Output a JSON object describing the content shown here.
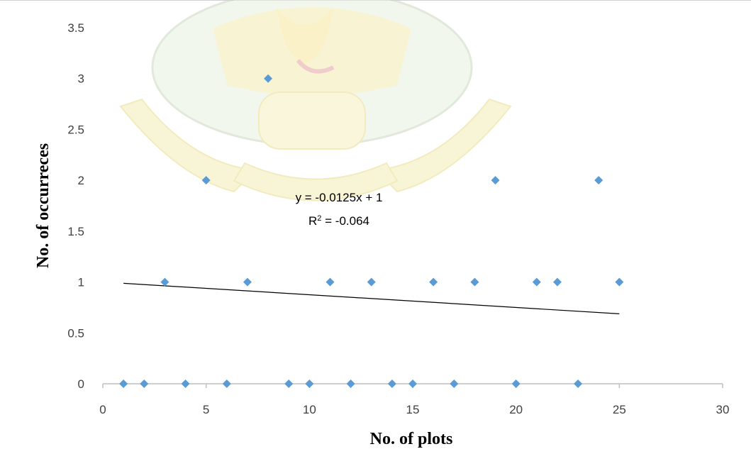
{
  "chart_data": {
    "type": "scatter",
    "xlabel": "No. of plots",
    "ylabel": "No. of occurreces",
    "xlim": [
      0,
      30
    ],
    "ylim": [
      0,
      3.5
    ],
    "xticks": [
      0,
      5,
      10,
      15,
      20,
      25,
      30
    ],
    "yticks": [
      0,
      0.5,
      1,
      1.5,
      2,
      2.5,
      3,
      3.5
    ],
    "xtick_labels": [
      "0",
      "5",
      "10",
      "15",
      "20",
      "25",
      "30"
    ],
    "ytick_labels": [
      "0",
      "0.5",
      "1",
      "1.5",
      "2",
      "2.5",
      "3",
      "3.5"
    ],
    "grid": false,
    "marker_color": "#5b9bd5",
    "trendline_color": "#000000",
    "series": [
      {
        "x": [
          1,
          2,
          3,
          4,
          5,
          6,
          7,
          8,
          9,
          10,
          11,
          12,
          13,
          14,
          15,
          16,
          17,
          18,
          19,
          20,
          21,
          22,
          23,
          24,
          25
        ],
        "y": [
          0,
          0,
          1,
          0,
          2,
          0,
          1,
          3,
          0,
          0,
          1,
          0,
          1,
          0,
          0,
          1,
          0,
          1,
          2,
          0,
          1,
          1,
          0,
          2,
          1
        ]
      }
    ],
    "trendline": {
      "slope": -0.0125,
      "intercept": 1,
      "x_range": [
        1,
        25
      ],
      "equation": "y = -0.0125x + 1",
      "r_squared_prefix": "R",
      "r_squared_sup": "2",
      "r_squared_value": " = -0.064"
    }
  }
}
